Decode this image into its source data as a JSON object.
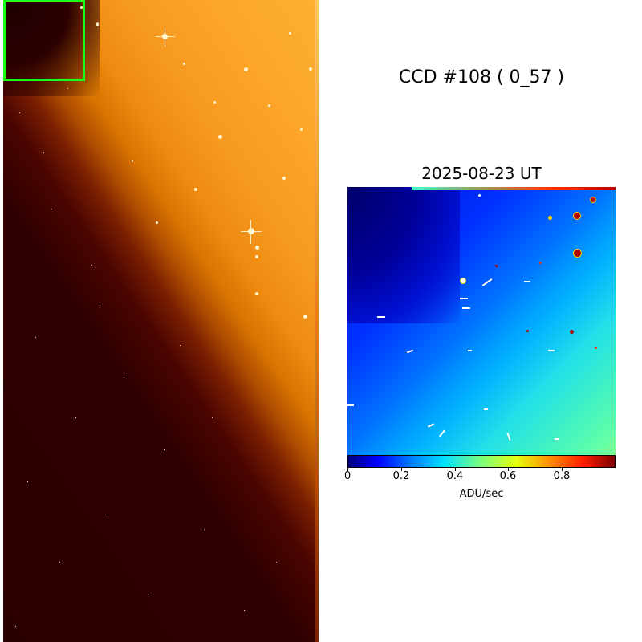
{
  "figure": {
    "ccd_title": "CCD #108 ( 0_57 )",
    "date_title": "2025-08-23 UT",
    "colorbar": {
      "label": "ADU/sec",
      "colormap": "jet",
      "range": [
        0,
        1.0
      ],
      "ticks": [
        {
          "value": 0,
          "label": "0"
        },
        {
          "value": 0.2,
          "label": "0.2"
        },
        {
          "value": 0.4,
          "label": "0.4"
        },
        {
          "value": 0.6,
          "label": "0.6"
        },
        {
          "value": 0.8,
          "label": "0.8"
        }
      ]
    },
    "full_image": {
      "colormap": "afmhot"
    },
    "zoom_box_color": "#19ff19"
  }
}
